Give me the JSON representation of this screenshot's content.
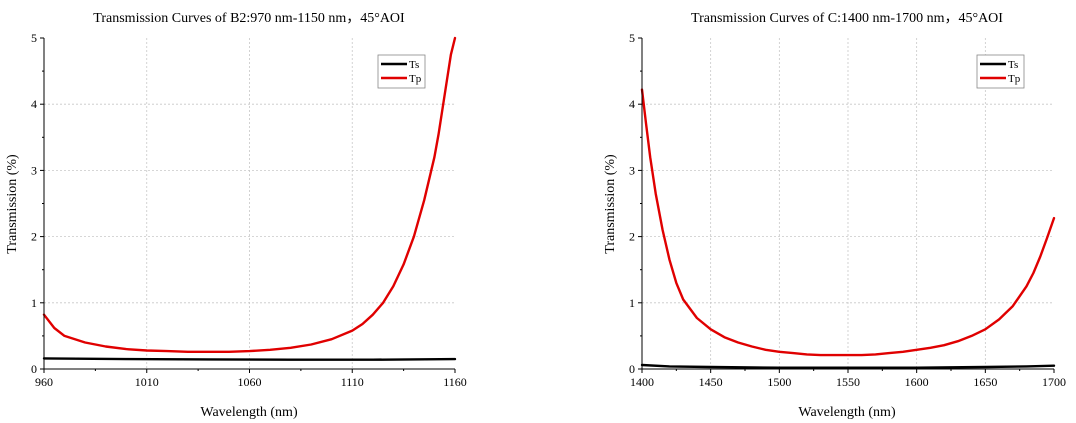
{
  "chart_data": [
    {
      "type": "line",
      "title": "Transmission Curves of B2:970 nm-1150 nm，45°AOI",
      "xlabel": "Wavelength (nm)",
      "ylabel": "Transmission (%)",
      "xlim": [
        960,
        1160
      ],
      "ylim": [
        0,
        5
      ],
      "xticks": [
        960,
        1010,
        1060,
        1110,
        1160
      ],
      "yticks": [
        0,
        1,
        2,
        3,
        4,
        5
      ],
      "grid": true,
      "legend_position": "top-right",
      "series": [
        {
          "name": "Ts",
          "color": "#000000",
          "x": [
            960,
            1000,
            1040,
            1080,
            1120,
            1160
          ],
          "y": [
            0.16,
            0.15,
            0.145,
            0.14,
            0.14,
            0.15
          ]
        },
        {
          "name": "Tp",
          "color": "#e00000",
          "x": [
            960,
            965,
            970,
            980,
            990,
            1000,
            1010,
            1020,
            1030,
            1040,
            1050,
            1060,
            1070,
            1080,
            1090,
            1100,
            1110,
            1115,
            1120,
            1125,
            1130,
            1135,
            1140,
            1145,
            1150,
            1152,
            1154,
            1156,
            1158,
            1160
          ],
          "y": [
            0.82,
            0.62,
            0.5,
            0.4,
            0.34,
            0.3,
            0.28,
            0.27,
            0.26,
            0.26,
            0.26,
            0.27,
            0.29,
            0.32,
            0.37,
            0.45,
            0.58,
            0.68,
            0.82,
            1.0,
            1.25,
            1.58,
            2.0,
            2.55,
            3.2,
            3.55,
            3.95,
            4.35,
            4.75,
            5.0
          ]
        }
      ]
    },
    {
      "type": "line",
      "title": "Transmission Curves of C:1400 nm-1700 nm，45°AOI",
      "xlabel": "Wavelength (nm)",
      "ylabel": "Transmission (%)",
      "xlim": [
        1400,
        1700
      ],
      "ylim": [
        0,
        5
      ],
      "xticks": [
        1400,
        1450,
        1500,
        1550,
        1600,
        1650,
        1700
      ],
      "yticks": [
        0,
        1,
        2,
        3,
        4,
        5
      ],
      "grid": true,
      "legend_position": "top-right",
      "series": [
        {
          "name": "Ts",
          "color": "#000000",
          "x": [
            1400,
            1420,
            1450,
            1500,
            1550,
            1600,
            1650,
            1680,
            1700
          ],
          "y": [
            0.06,
            0.04,
            0.03,
            0.02,
            0.02,
            0.02,
            0.03,
            0.04,
            0.05
          ]
        },
        {
          "name": "Tp",
          "color": "#e00000",
          "x": [
            1400,
            1403,
            1406,
            1410,
            1415,
            1420,
            1425,
            1430,
            1440,
            1450,
            1460,
            1470,
            1480,
            1490,
            1500,
            1510,
            1520,
            1530,
            1540,
            1550,
            1560,
            1570,
            1580,
            1590,
            1600,
            1610,
            1620,
            1630,
            1640,
            1650,
            1660,
            1670,
            1680,
            1685,
            1690,
            1695,
            1700
          ],
          "y": [
            4.22,
            3.7,
            3.2,
            2.65,
            2.1,
            1.65,
            1.3,
            1.05,
            0.77,
            0.6,
            0.48,
            0.4,
            0.34,
            0.29,
            0.26,
            0.24,
            0.22,
            0.21,
            0.21,
            0.21,
            0.21,
            0.22,
            0.24,
            0.26,
            0.29,
            0.32,
            0.36,
            0.42,
            0.5,
            0.6,
            0.75,
            0.95,
            1.25,
            1.45,
            1.7,
            1.98,
            2.28
          ]
        }
      ]
    }
  ]
}
